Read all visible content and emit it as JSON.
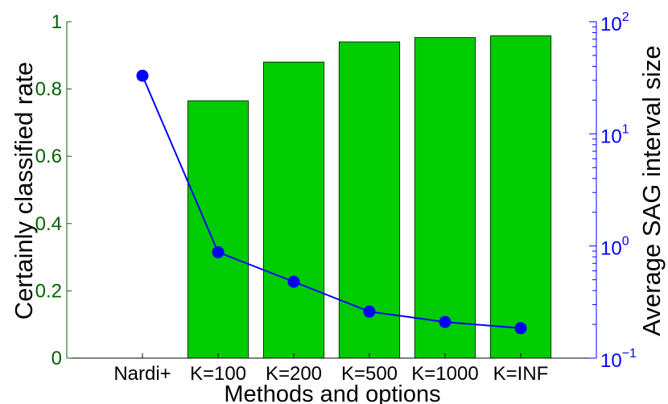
{
  "chart_data": {
    "type": "bar",
    "categories": [
      "Nardi+",
      "K=100",
      "K=200",
      "K=500",
      "K=1000",
      "K=INF"
    ],
    "series": [
      {
        "type": "bar",
        "axis": "left",
        "color": "#00cc00",
        "values": [
          0,
          0.765,
          0.88,
          0.94,
          0.953,
          0.958
        ]
      },
      {
        "type": "line",
        "axis": "right",
        "scale": "log",
        "color": "#0000ff",
        "marker": "circle",
        "values": [
          33,
          0.88,
          0.48,
          0.26,
          0.21,
          0.185
        ]
      }
    ],
    "xlabel": "Methods and options",
    "ylabel_left": "Certainly classified rate",
    "ylabel_right": "Average SAG interval size",
    "ylim_left": [
      0,
      1
    ],
    "ylim_right": [
      0.1,
      100
    ],
    "yticks_left": [
      "0",
      "0.2",
      "0.4",
      "0.6",
      "0.8",
      "1"
    ],
    "yticks_right": [
      {
        "base": "10",
        "exp": "−1"
      },
      {
        "base": "10",
        "exp": "0"
      },
      {
        "base": "10",
        "exp": "1"
      },
      {
        "base": "10",
        "exp": "2"
      }
    ],
    "grid": false,
    "left_axis_color": "#006400",
    "right_axis_color": "#0000ff",
    "bar_color": "#00cc00",
    "bar_edge_color": "#003300"
  }
}
